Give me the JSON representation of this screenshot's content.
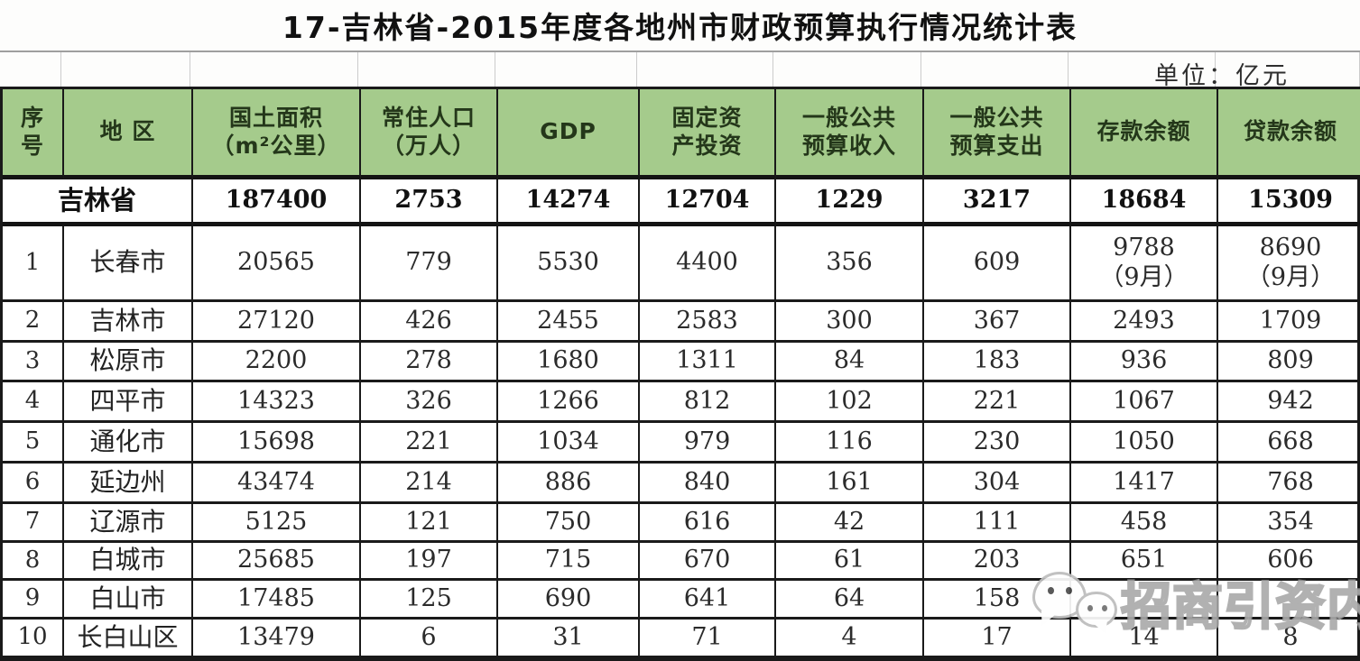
{
  "title": "17-吉林省-2015年度各地州市财政预算执行情况统计表",
  "unit_label": "单位：亿元",
  "colors": {
    "header_bg": "#a5cb8c",
    "header_text": "#24371a",
    "border": "#1a1a1a",
    "body_text": "#2b2b2b"
  },
  "watermark": {
    "icon": "wechat-chat-bubbles-icon",
    "text": "招商引资内参"
  },
  "chart_data": {
    "type": "table",
    "title": "17-吉林省-2015年度各地州市财政预算执行情况统计表",
    "unit": "单位：亿元",
    "columns": [
      {
        "key": "no",
        "label": "序\n号"
      },
      {
        "key": "region",
        "label": "地 区"
      },
      {
        "key": "land-area",
        "label": "国土面积\n（m²公里）"
      },
      {
        "key": "population",
        "label": "常住人口\n（万人）"
      },
      {
        "key": "gdp",
        "label": "GDP"
      },
      {
        "key": "fixed-investment",
        "label": "固定资\n产投资"
      },
      {
        "key": "budget-revenue",
        "label": "一般公共\n预算收入"
      },
      {
        "key": "budget-expenditure",
        "label": "一般公共\n预算支出"
      },
      {
        "key": "deposit-balance",
        "label": "存款余额"
      },
      {
        "key": "loan-balance",
        "label": "贷款余额"
      }
    ],
    "province_row": {
      "region": "吉林省",
      "values": [
        "187400",
        "2753",
        "14274",
        "12704",
        "1229",
        "3217",
        "18684",
        "15309"
      ]
    },
    "rows": [
      {
        "no": "1",
        "region": "长春市",
        "values": [
          "20565",
          "779",
          "5530",
          "4400",
          "356",
          "609",
          "9788\n（9月）",
          "8690\n（9月）"
        ]
      },
      {
        "no": "2",
        "region": "吉林市",
        "values": [
          "27120",
          "426",
          "2455",
          "2583",
          "300",
          "367",
          "2493",
          "1709"
        ]
      },
      {
        "no": "3",
        "region": "松原市",
        "values": [
          "2200",
          "278",
          "1680",
          "1311",
          "84",
          "183",
          "936",
          "809"
        ]
      },
      {
        "no": "4",
        "region": "四平市",
        "values": [
          "14323",
          "326",
          "1266",
          "812",
          "102",
          "221",
          "1067",
          "942"
        ]
      },
      {
        "no": "5",
        "region": "通化市",
        "values": [
          "15698",
          "221",
          "1034",
          "979",
          "116",
          "230",
          "1050",
          "668"
        ]
      },
      {
        "no": "6",
        "region": "延边州",
        "values": [
          "43474",
          "214",
          "886",
          "840",
          "161",
          "304",
          "1417",
          "768"
        ]
      },
      {
        "no": "7",
        "region": "辽源市",
        "values": [
          "5125",
          "121",
          "750",
          "616",
          "42",
          "111",
          "458",
          "354"
        ]
      },
      {
        "no": "8",
        "region": "白城市",
        "values": [
          "25685",
          "197",
          "715",
          "670",
          "61",
          "203",
          "651",
          "606"
        ]
      },
      {
        "no": "9",
        "region": "白山市",
        "values": [
          "17485",
          "125",
          "690",
          "641",
          "64",
          "158",
          "",
          ""
        ]
      },
      {
        "no": "10",
        "region": "长白山区",
        "values": [
          "13479",
          "6",
          "31",
          "71",
          "4",
          "17",
          "14",
          "8"
        ]
      }
    ]
  }
}
